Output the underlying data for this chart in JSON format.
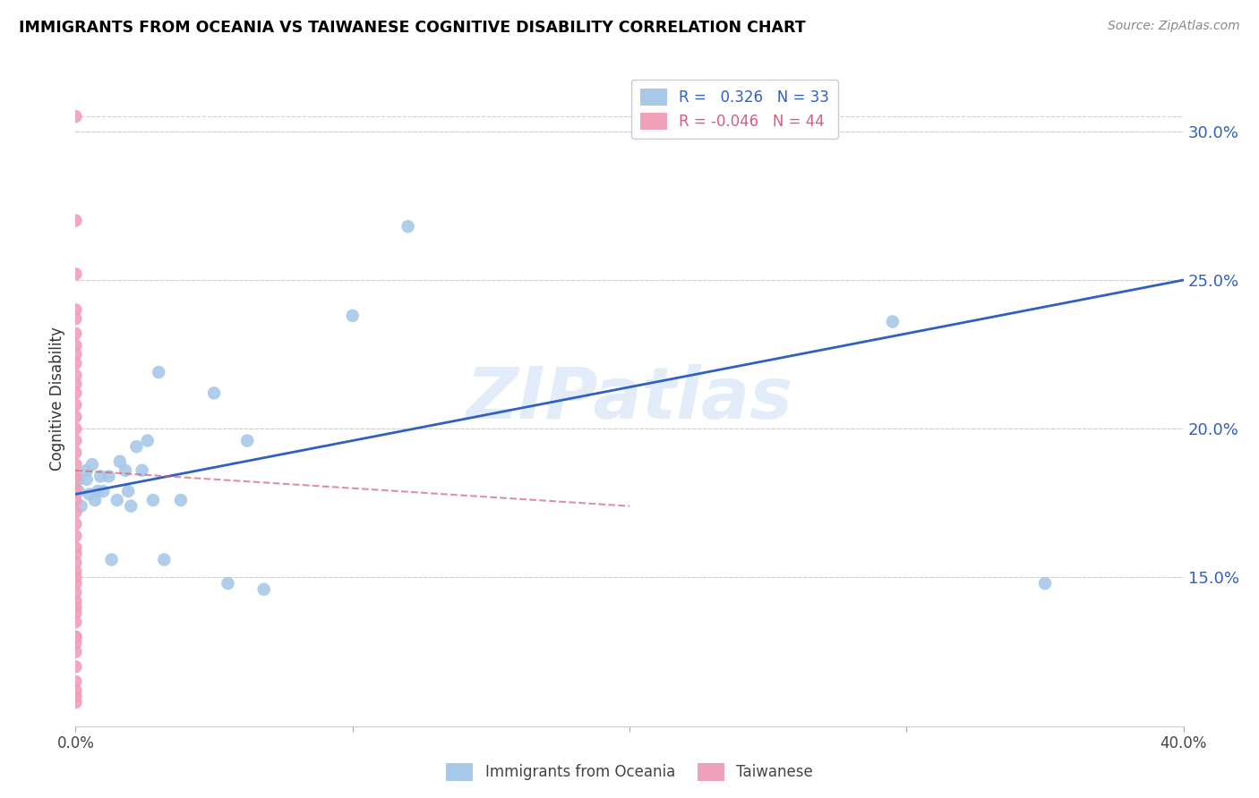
{
  "title": "IMMIGRANTS FROM OCEANIA VS TAIWANESE COGNITIVE DISABILITY CORRELATION CHART",
  "source": "Source: ZipAtlas.com",
  "ylabel": "Cognitive Disability",
  "watermark": "ZIPatlas",
  "xlim": [
    0.0,
    0.4
  ],
  "ylim": [
    0.1,
    0.32
  ],
  "xticks": [
    0.0,
    0.1,
    0.2,
    0.3,
    0.4
  ],
  "xtick_labels": [
    "0.0%",
    "",
    "",
    "",
    "40.0%"
  ],
  "yticks_right": [
    0.15,
    0.2,
    0.25,
    0.3
  ],
  "ytick_labels_right": [
    "15.0%",
    "20.0%",
    "25.0%",
    "30.0%"
  ],
  "grid_color": "#d0d0d0",
  "background_color": "#ffffff",
  "legend_r1_val": "0.326",
  "legend_r2_val": "-0.046",
  "legend_n1": "33",
  "legend_n2": "44",
  "series1_color": "#a8c8e8",
  "series2_color": "#f0a0b8",
  "line1_color": "#3060c0",
  "line2_color": "#d06080",
  "title_color": "#000000",
  "right_axis_color": "#3060c0",
  "oceania_x": [
    0.001,
    0.001,
    0.002,
    0.004,
    0.004,
    0.005,
    0.006,
    0.007,
    0.008,
    0.009,
    0.01,
    0.012,
    0.013,
    0.015,
    0.016,
    0.018,
    0.019,
    0.02,
    0.022,
    0.024,
    0.026,
    0.028,
    0.03,
    0.032,
    0.038,
    0.05,
    0.055,
    0.062,
    0.068,
    0.1,
    0.12,
    0.295,
    0.35
  ],
  "oceania_y": [
    0.183,
    0.179,
    0.174,
    0.186,
    0.183,
    0.178,
    0.188,
    0.176,
    0.179,
    0.184,
    0.179,
    0.184,
    0.156,
    0.176,
    0.189,
    0.186,
    0.179,
    0.174,
    0.194,
    0.186,
    0.196,
    0.176,
    0.219,
    0.156,
    0.176,
    0.212,
    0.148,
    0.196,
    0.146,
    0.238,
    0.268,
    0.236,
    0.148
  ],
  "taiwanese_x": [
    0.0,
    0.0,
    0.0,
    0.0,
    0.0,
    0.0,
    0.0,
    0.0,
    0.0,
    0.0,
    0.0,
    0.0,
    0.0,
    0.0,
    0.0,
    0.0,
    0.0,
    0.0,
    0.0,
    0.0,
    0.0,
    0.0,
    0.0,
    0.0,
    0.0,
    0.0,
    0.0,
    0.0,
    0.0,
    0.0,
    0.0,
    0.0,
    0.0,
    0.0,
    0.0,
    0.0,
    0.0,
    0.0,
    0.0,
    0.0,
    0.0,
    0.0,
    0.0,
    0.0
  ],
  "taiwanese_y": [
    0.305,
    0.27,
    0.252,
    0.24,
    0.237,
    0.232,
    0.228,
    0.225,
    0.222,
    0.218,
    0.215,
    0.212,
    0.208,
    0.204,
    0.2,
    0.196,
    0.192,
    0.188,
    0.184,
    0.18,
    0.176,
    0.172,
    0.168,
    0.164,
    0.16,
    0.155,
    0.15,
    0.145,
    0.14,
    0.135,
    0.13,
    0.125,
    0.12,
    0.115,
    0.112,
    0.108,
    0.13,
    0.138,
    0.142,
    0.148,
    0.152,
    0.158,
    0.128,
    0.11
  ],
  "line1_x_start": 0.0,
  "line1_x_end": 0.4,
  "line1_y_start": 0.178,
  "line1_y_end": 0.25,
  "line2_x_start": 0.0,
  "line2_x_end": 0.2,
  "line2_y_start": 0.186,
  "line2_y_end": 0.174
}
